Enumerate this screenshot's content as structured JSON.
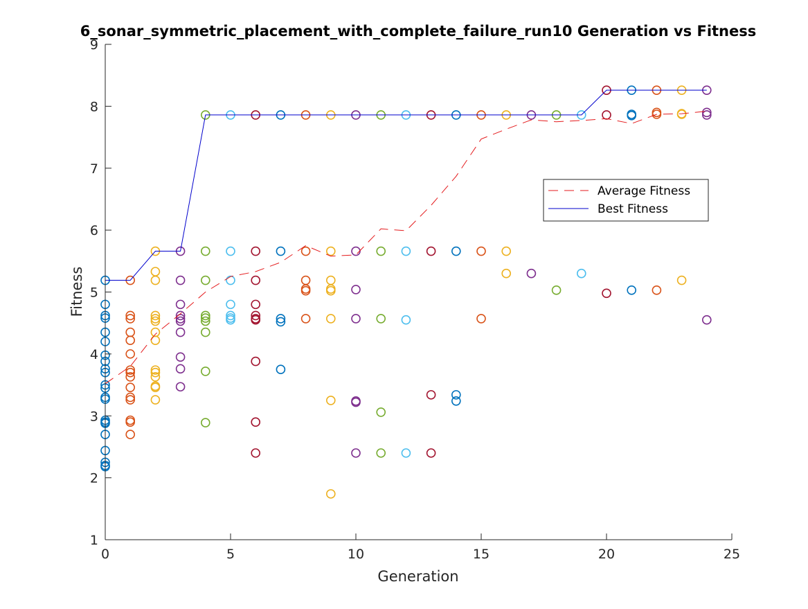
{
  "chart_data": {
    "type": "scatter",
    "title": "6_sonar_symmetric_placement_with_complete_failure_run10 Generation vs Fitness",
    "xlabel": "Generation",
    "ylabel": "Fitness",
    "xlim": [
      0,
      25
    ],
    "ylim": [
      1,
      9
    ],
    "xticks": [
      "0",
      "5",
      "10",
      "15",
      "20",
      "25"
    ],
    "yticks": [
      "1",
      "2",
      "3",
      "4",
      "5",
      "6",
      "7",
      "8",
      "9"
    ],
    "grid": false,
    "legend_position": "right",
    "colors": {
      "average_line": "#e41a1c",
      "best_line": "#0000cc",
      "generation_cycle": [
        "#0072bd",
        "#d95319",
        "#edb120",
        "#7e2f8e",
        "#77ac30",
        "#4dbeee",
        "#a2142f"
      ]
    },
    "population": [
      {
        "generation": 0,
        "fitness": [
          5.19,
          4.8,
          4.62,
          4.58,
          4.35,
          4.2,
          3.98,
          3.88,
          3.76,
          3.7,
          3.5,
          3.45,
          3.3,
          3.27,
          2.93,
          2.9,
          2.88,
          2.7,
          2.44,
          2.25,
          2.2,
          2.18
        ]
      },
      {
        "generation": 1,
        "fitness": [
          5.19,
          4.62,
          4.57,
          4.35,
          4.22,
          4.0,
          3.74,
          3.7,
          3.63,
          3.46,
          3.3,
          3.26,
          2.93,
          2.9,
          2.7
        ]
      },
      {
        "generation": 2,
        "fitness": [
          5.66,
          5.33,
          5.19,
          4.62,
          4.57,
          4.53,
          4.35,
          4.22,
          3.74,
          3.7,
          3.63,
          3.48,
          3.46,
          3.26
        ]
      },
      {
        "generation": 3,
        "fitness": [
          5.66,
          5.19,
          4.8,
          4.62,
          4.57,
          4.53,
          4.35,
          3.95,
          3.76,
          3.47
        ]
      },
      {
        "generation": 4,
        "fitness": [
          7.86,
          5.66,
          5.19,
          4.62,
          4.58,
          4.53,
          4.35,
          3.72,
          2.89
        ]
      },
      {
        "generation": 5,
        "fitness": [
          7.86,
          5.66,
          5.19,
          4.8,
          4.62,
          4.58,
          4.55
        ]
      },
      {
        "generation": 6,
        "fitness": [
          7.86,
          5.66,
          5.19,
          4.8,
          4.62,
          4.57,
          4.55,
          3.88,
          2.9,
          2.4
        ]
      },
      {
        "generation": 7,
        "fitness": [
          7.86,
          5.66,
          4.57,
          4.52,
          3.75
        ]
      },
      {
        "generation": 8,
        "fitness": [
          7.86,
          5.66,
          5.19,
          5.05,
          5.02,
          4.57
        ]
      },
      {
        "generation": 9,
        "fitness": [
          7.86,
          5.66,
          5.19,
          5.05,
          5.02,
          4.57,
          3.25,
          1.74
        ]
      },
      {
        "generation": 10,
        "fitness": [
          7.86,
          5.66,
          5.04,
          4.57,
          3.24,
          3.22,
          2.4
        ]
      },
      {
        "generation": 11,
        "fitness": [
          7.86,
          5.66,
          4.57,
          3.06,
          2.4
        ]
      },
      {
        "generation": 12,
        "fitness": [
          7.86,
          5.66,
          4.55,
          2.4
        ]
      },
      {
        "generation": 13,
        "fitness": [
          7.86,
          5.66,
          3.34,
          2.4
        ]
      },
      {
        "generation": 14,
        "fitness": [
          7.86,
          5.66,
          3.34,
          3.24
        ]
      },
      {
        "generation": 15,
        "fitness": [
          7.86,
          5.66,
          4.57
        ]
      },
      {
        "generation": 16,
        "fitness": [
          7.86,
          5.66,
          5.3
        ]
      },
      {
        "generation": 17,
        "fitness": [
          7.86,
          5.3
        ]
      },
      {
        "generation": 18,
        "fitness": [
          7.86,
          5.03
        ]
      },
      {
        "generation": 19,
        "fitness": [
          7.86,
          5.3
        ]
      },
      {
        "generation": 20,
        "fitness": [
          8.26,
          7.86,
          4.98
        ]
      },
      {
        "generation": 21,
        "fitness": [
          8.26,
          7.87,
          7.85,
          5.03
        ]
      },
      {
        "generation": 22,
        "fitness": [
          8.26,
          7.9,
          7.87,
          5.03
        ]
      },
      {
        "generation": 23,
        "fitness": [
          8.26,
          7.88,
          7.87,
          5.19
        ]
      },
      {
        "generation": 24,
        "fitness": [
          8.26,
          7.9,
          7.86,
          4.55
        ]
      }
    ],
    "series": [
      {
        "name": "Average Fitness",
        "x": [
          0,
          1,
          2,
          3,
          4,
          5,
          6,
          7,
          8,
          9,
          10,
          11,
          12,
          13,
          14,
          15,
          16,
          17,
          18,
          19,
          20,
          21,
          22,
          23,
          24
        ],
        "values": [
          3.52,
          3.8,
          4.32,
          4.65,
          5.0,
          5.25,
          5.33,
          5.48,
          5.75,
          5.58,
          5.6,
          6.02,
          5.99,
          6.4,
          6.87,
          7.47,
          7.63,
          7.78,
          7.75,
          7.77,
          7.8,
          7.72,
          7.87,
          7.88,
          7.92
        ]
      },
      {
        "name": "Best Fitness",
        "x": [
          0,
          1,
          2,
          3,
          4,
          5,
          6,
          7,
          8,
          9,
          10,
          11,
          12,
          13,
          14,
          15,
          16,
          17,
          18,
          19,
          20,
          21,
          22,
          23,
          24
        ],
        "values": [
          5.19,
          5.19,
          5.66,
          5.66,
          7.86,
          7.86,
          7.86,
          7.86,
          7.86,
          7.86,
          7.86,
          7.86,
          7.86,
          7.86,
          7.86,
          7.86,
          7.86,
          7.86,
          7.86,
          7.86,
          8.26,
          8.26,
          8.26,
          8.26,
          8.26
        ]
      }
    ]
  }
}
